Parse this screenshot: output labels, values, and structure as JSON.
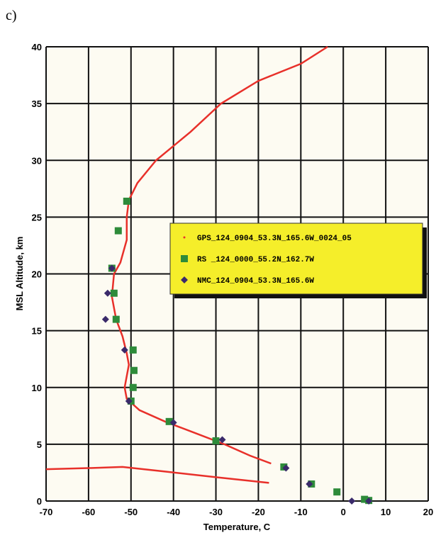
{
  "chart_data": {
    "type": "scatter",
    "panel_label": "c)",
    "xlabel": "Temperature, C",
    "ylabel": "MSL Altitude, km",
    "xlim": [
      -70,
      20
    ],
    "ylim": [
      0,
      40
    ],
    "xticks": [
      -70,
      -60,
      -50,
      -40,
      -30,
      -20,
      -10,
      0,
      10,
      20
    ],
    "yticks": [
      0,
      5,
      10,
      15,
      20,
      25,
      30,
      35,
      40
    ],
    "grid": true,
    "legend": "right",
    "series": [
      {
        "name": "GPS_124_0904_53.3N_165.6W_0024_05",
        "color": "#e8302a",
        "marker": "line",
        "x": [
          -3.7,
          -10,
          -20,
          -28.8,
          -36,
          -44.1,
          -48.5,
          -50.5,
          -51,
          -51,
          -52.5,
          -54,
          -54.5,
          -53.5,
          -52,
          -51,
          -50.5,
          -51.5,
          -51,
          -48,
          -42,
          -35,
          -28,
          -22,
          -17,
          null,
          -17.5,
          -30,
          -42,
          -52,
          -60,
          -70
        ],
        "values": [
          40,
          38.5,
          37,
          35,
          32.5,
          30,
          28,
          26.5,
          25,
          23,
          21,
          20,
          18,
          16,
          14.5,
          13,
          12,
          10,
          9,
          8,
          7,
          6,
          5,
          4,
          3.3,
          null,
          1.6,
          2.1,
          2.6,
          3,
          2.9,
          2.8
        ]
      },
      {
        "name": "RS _124_0000_55.2N_162.7W",
        "color": "#2e8b3a",
        "marker": "square",
        "x": [
          -51,
          -53,
          -54.5,
          -54,
          -53.5,
          -49.5,
          -49.3,
          -49.5,
          -50,
          -41,
          -30,
          -14,
          -7.5,
          -1.5,
          5,
          6
        ],
        "values": [
          26.4,
          23.8,
          20.5,
          18.3,
          16,
          13.3,
          11.5,
          10,
          8.8,
          7,
          5.3,
          3,
          1.5,
          0.8,
          0.15,
          0.05
        ]
      },
      {
        "name": "NMC_124_0904_53.3N_165.6W",
        "color": "#3a2a6a",
        "marker": "diamond",
        "x": [
          -54.5,
          -55.5,
          -56,
          -51.5,
          -50.5,
          -40,
          -28.5,
          -13.5,
          -8,
          2,
          6
        ],
        "values": [
          20.5,
          18.3,
          16,
          13.3,
          8.8,
          6.9,
          5.4,
          2.9,
          1.5,
          0,
          0
        ]
      }
    ]
  }
}
